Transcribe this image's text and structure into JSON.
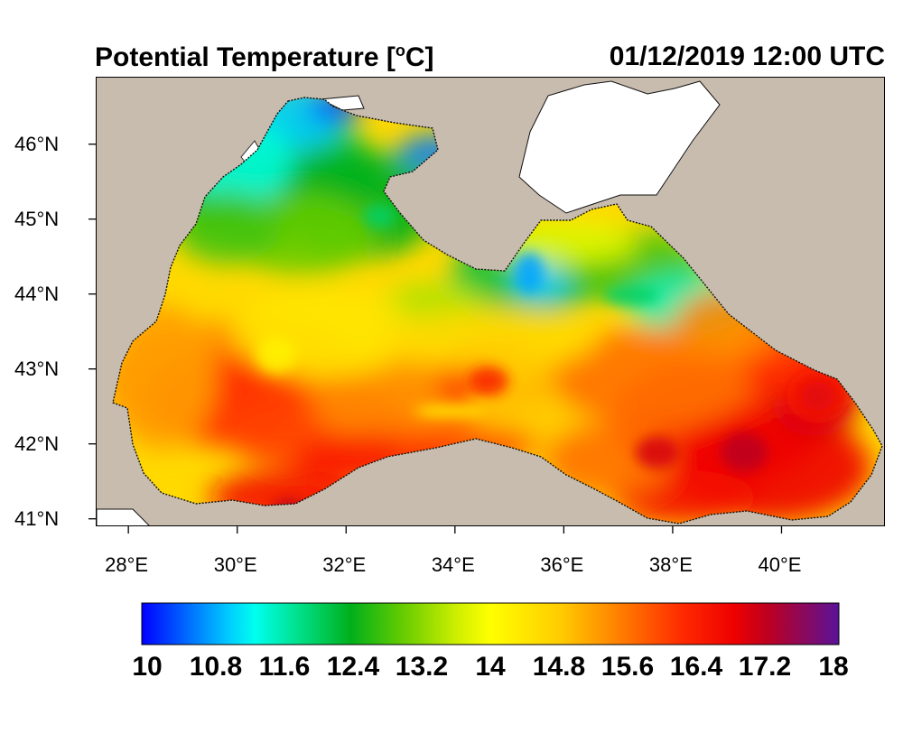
{
  "title": "Potential Temperature [°C]",
  "title_parts": {
    "main": "Potential Temperature [",
    "degree": "o",
    "unit": "C]"
  },
  "timestamp": "01/12/2019 12:00 UTC",
  "map": {
    "region": "Black Sea",
    "lon_range": [
      27.4,
      41.9
    ],
    "lat_range": [
      40.9,
      46.9
    ],
    "land_color": "#c8bcaf",
    "outside_color": "#ffffff",
    "lat_ticks": [
      {
        "value": 46,
        "label": "46°N"
      },
      {
        "value": 45,
        "label": "45°N"
      },
      {
        "value": 44,
        "label": "44°N"
      },
      {
        "value": 43,
        "label": "43°N"
      },
      {
        "value": 42,
        "label": "42°N"
      },
      {
        "value": 41,
        "label": "41°N"
      }
    ],
    "lon_ticks": [
      {
        "value": 28,
        "label": "28°E"
      },
      {
        "value": 30,
        "label": "30°E"
      },
      {
        "value": 32,
        "label": "32°E"
      },
      {
        "value": 34,
        "label": "34°E"
      },
      {
        "value": 36,
        "label": "36°E"
      },
      {
        "value": 38,
        "label": "38°E"
      },
      {
        "value": 40,
        "label": "40°E"
      }
    ]
  },
  "colorbar": {
    "min": 10,
    "max": 18,
    "labels": [
      "10",
      "10.8",
      "11.6",
      "12.4",
      "13.2",
      "14",
      "14.8",
      "15.6",
      "16.4",
      "17.2",
      "18"
    ],
    "colors": [
      {
        "value": 10.0,
        "color": "#0000ff"
      },
      {
        "value": 10.5,
        "color": "#0066ff"
      },
      {
        "value": 11.0,
        "color": "#00ccff"
      },
      {
        "value": 11.3,
        "color": "#00ffee"
      },
      {
        "value": 11.8,
        "color": "#00e08a"
      },
      {
        "value": 12.4,
        "color": "#00b01a"
      },
      {
        "value": 13.0,
        "color": "#66cc00"
      },
      {
        "value": 13.6,
        "color": "#ccee00"
      },
      {
        "value": 14.0,
        "color": "#ffff00"
      },
      {
        "value": 14.8,
        "color": "#ffcc00"
      },
      {
        "value": 15.4,
        "color": "#ff8800"
      },
      {
        "value": 16.2,
        "color": "#ff2a00"
      },
      {
        "value": 16.8,
        "color": "#ee0000"
      },
      {
        "value": 17.2,
        "color": "#bb0022"
      },
      {
        "value": 18.0,
        "color": "#5a1299"
      }
    ]
  }
}
